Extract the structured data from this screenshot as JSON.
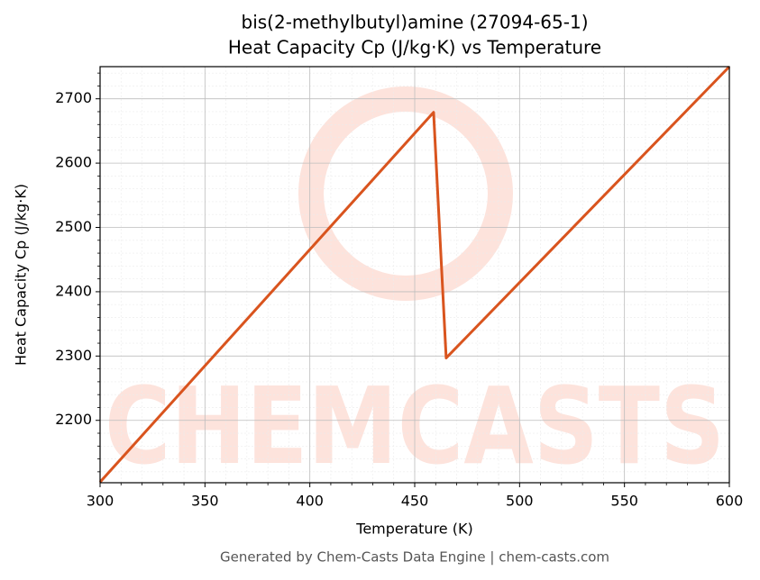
{
  "chart_data": {
    "type": "line",
    "title": [
      "bis(2-methylbutyl)amine (27094-65-1)",
      "Heat Capacity Cp (J/kg·K) vs Temperature"
    ],
    "x_label": "Temperature (K)",
    "y_label": "Heat Capacity Cp (J/kg·K)",
    "footer": "Generated by Chem-Casts Data Engine | chem-casts.com",
    "watermark": "CHEMCASTS",
    "x": [
      300,
      459,
      465,
      600
    ],
    "series": [
      {
        "name": "Cp",
        "color": "#d9541e",
        "values": [
          2104,
          2679,
          2297,
          2750
        ]
      }
    ],
    "xlim": [
      300,
      600
    ],
    "xticks": [
      300,
      350,
      400,
      450,
      500,
      550,
      600
    ],
    "ylim": [
      2103,
      2750
    ],
    "yticks": [
      2200,
      2300,
      2400,
      2500,
      2600,
      2700
    ],
    "grid": true,
    "minor_grid": true
  }
}
